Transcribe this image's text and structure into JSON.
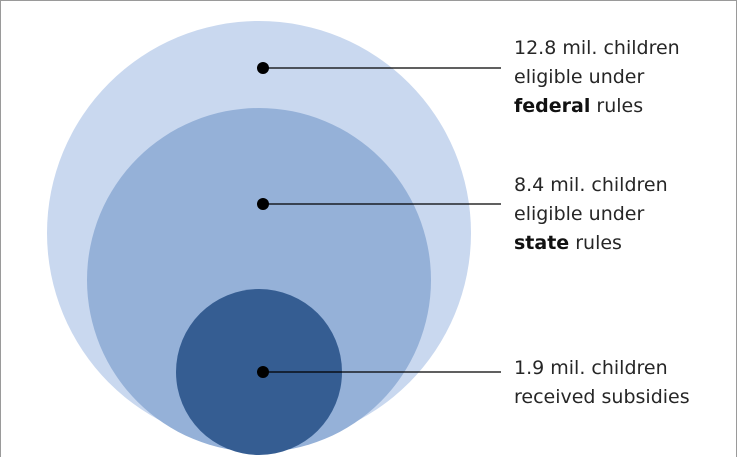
{
  "diagram": {
    "circles": [
      {
        "name": "federal",
        "fill": "#c9d8ef"
      },
      {
        "name": "state",
        "fill": "#95b1d8"
      },
      {
        "name": "received",
        "fill": "#355d92"
      }
    ],
    "line_color": "#000000",
    "labels": {
      "federal": {
        "line1": "12.8 mil. children",
        "line2": "eligible under",
        "bold": "federal",
        "rest": " rules"
      },
      "state": {
        "line1": "8.4 mil. children",
        "line2": "eligible under",
        "bold": "state",
        "rest": " rules"
      },
      "received": {
        "line1": "1.9 mil. children",
        "line2": "received subsidies"
      }
    }
  }
}
